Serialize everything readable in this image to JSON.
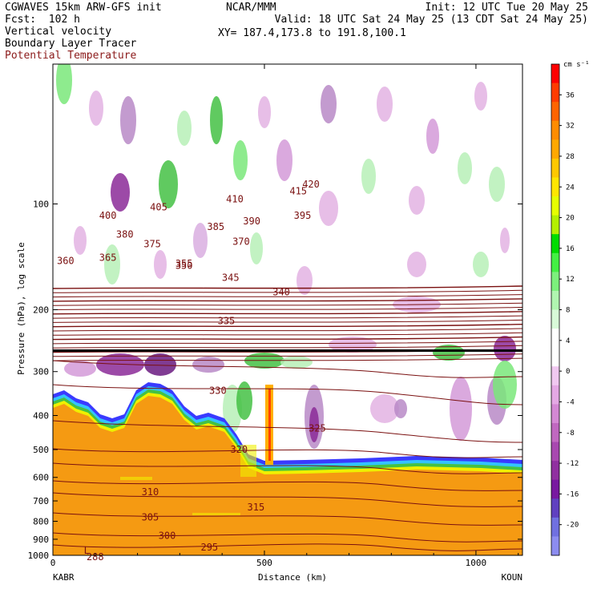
{
  "header": {
    "model": "CGWAVES 15km ARW-GFS init",
    "forecast": "Fcst:  102 h",
    "field1": "Vertical velocity",
    "field2": "Boundary Layer Tracer",
    "field3": "Potential Temperature",
    "org": "NCAR/MMM",
    "init": "Init: 12 UTC Tue 20 May 25",
    "valid": "Valid: 18 UTC Sat 24 May 25 (13 CDT Sat 24 May 25)",
    "xy": "XY= 187.4,173.8 to 191.8,100.1"
  },
  "colors": {
    "theta_line": "#7a1010",
    "tracer": "#f59a12",
    "purple": "#8b2a98",
    "green": "#44c144"
  },
  "chart_data": {
    "type": "heatmap",
    "xlabel": "Distance (km)",
    "ylabel": "Pressure (hPa), log scale",
    "x_start_label": "KABR",
    "x_end_label": "KOUN",
    "xlim": [
      0,
      1110
    ],
    "ylim": [
      1000,
      40
    ],
    "y_log_scale": true,
    "x_ticks": [
      0,
      500,
      1000
    ],
    "y_ticks": [
      100,
      200,
      300,
      400,
      500,
      600,
      700,
      800,
      900,
      1000
    ],
    "colorbar": {
      "units": "cm s⁻¹",
      "ticks": [
        36,
        32,
        28,
        24,
        20,
        16,
        12,
        8,
        4,
        0,
        -4,
        -8,
        -12,
        -16,
        -20
      ],
      "colors": [
        "#ff0000",
        "#ff3c00",
        "#ff6400",
        "#ff8c00",
        "#ffa800",
        "#ffc800",
        "#ffe600",
        "#e6ff00",
        "#b4f000",
        "#00dc00",
        "#44f044",
        "#7cf07c",
        "#b0f5b0",
        "#d8fad8",
        "#ffffff",
        "#ffffff",
        "#f0c8f0",
        "#e4a8e4",
        "#d488d4",
        "#c068c0",
        "#a848b0",
        "#9030a0",
        "#7818a0",
        "#6040c0",
        "#7070e0",
        "#8c8cf0"
      ]
    },
    "theta_contours": [
      {
        "label": "295",
        "x": 370,
        "p": 950
      },
      {
        "label": "300",
        "x": 270,
        "p": 880
      },
      {
        "label": "305",
        "x": 230,
        "p": 780
      },
      {
        "label": "310",
        "x": 230,
        "p": 660
      },
      {
        "label": "315",
        "x": 480,
        "p": 730
      },
      {
        "label": "320",
        "x": 440,
        "p": 500
      },
      {
        "label": "325",
        "x": 625,
        "p": 435
      },
      {
        "label": "330",
        "x": 390,
        "p": 340
      },
      {
        "label": "335",
        "x": 410,
        "p": 215
      },
      {
        "label": "340",
        "x": 540,
        "p": 178
      },
      {
        "label": "345",
        "x": 420,
        "p": 162
      },
      {
        "label": "350",
        "x": 310,
        "p": 150
      },
      {
        "label": "355",
        "x": 310,
        "p": 148
      },
      {
        "label": "360",
        "x": 30,
        "p": 145
      },
      {
        "label": "365",
        "x": 130,
        "p": 142
      },
      {
        "label": "370",
        "x": 445,
        "p": 128
      },
      {
        "label": "375",
        "x": 235,
        "p": 130
      },
      {
        "label": "380",
        "x": 170,
        "p": 122
      },
      {
        "label": "385",
        "x": 385,
        "p": 116
      },
      {
        "label": "390",
        "x": 470,
        "p": 112
      },
      {
        "label": "395",
        "x": 590,
        "p": 108
      },
      {
        "label": "400",
        "x": 130,
        "p": 108
      },
      {
        "label": "405",
        "x": 250,
        "p": 102
      },
      {
        "label": "410",
        "x": 430,
        "p": 97
      },
      {
        "label": "415",
        "x": 580,
        "p": 92
      },
      {
        "label": "420",
        "x": 610,
        "p": 88
      }
    ],
    "minimum_label": {
      "label": "L",
      "x": 80,
      "p": 970
    },
    "minimum_value": {
      "label": "288",
      "x": 100,
      "p": 1000
    }
  }
}
